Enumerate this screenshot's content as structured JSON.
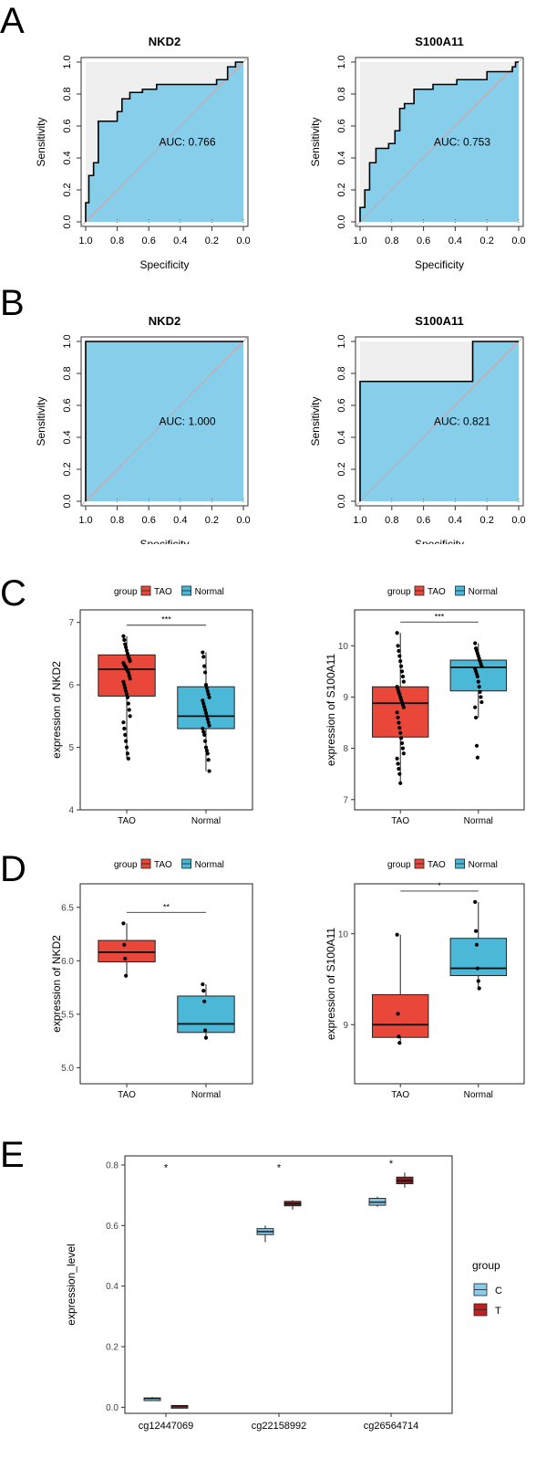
{
  "panels": {
    "A": {
      "label": "A"
    },
    "B": {
      "label": "B"
    },
    "C": {
      "label": "C"
    },
    "D": {
      "label": "D"
    },
    "E": {
      "label": "E"
    }
  },
  "colors": {
    "roc_fill": "#87ceeb",
    "roc_upper": "#efefef",
    "roc_diag": "#e59a9a",
    "TAO": "#e8473a",
    "Normal": "#4bb8d8",
    "C": "#89cdee",
    "T": "#c41f1f",
    "T_box": "#7b2020",
    "C_box": "#7fc2e2"
  },
  "chart_data": [
    {
      "id": "A1",
      "type": "line",
      "panel": "A",
      "title": "NKD2",
      "xlabel": "Specificity",
      "ylabel": "Sensitivity",
      "xlim": [
        1.0,
        0.0
      ],
      "ylim": [
        0,
        1
      ],
      "xticks": [
        "1.0",
        "0.8",
        "0.6",
        "0.4",
        "0.2",
        "0.0"
      ],
      "yticks": [
        "0.0",
        "0.2",
        "0.4",
        "0.6",
        "0.8",
        "1.0"
      ],
      "annotation": "AUC: 0.766",
      "roc": [
        [
          1.0,
          0.0
        ],
        [
          1.0,
          0.12
        ],
        [
          0.98,
          0.12
        ],
        [
          0.98,
          0.29
        ],
        [
          0.95,
          0.29
        ],
        [
          0.95,
          0.37
        ],
        [
          0.92,
          0.37
        ],
        [
          0.92,
          0.63
        ],
        [
          0.8,
          0.63
        ],
        [
          0.8,
          0.69
        ],
        [
          0.77,
          0.69
        ],
        [
          0.77,
          0.77
        ],
        [
          0.72,
          0.77
        ],
        [
          0.72,
          0.81
        ],
        [
          0.64,
          0.81
        ],
        [
          0.64,
          0.83
        ],
        [
          0.55,
          0.83
        ],
        [
          0.55,
          0.86
        ],
        [
          0.17,
          0.86
        ],
        [
          0.17,
          0.89
        ],
        [
          0.1,
          0.89
        ],
        [
          0.1,
          0.97
        ],
        [
          0.05,
          0.97
        ],
        [
          0.05,
          1.0
        ],
        [
          0.0,
          1.0
        ]
      ]
    },
    {
      "id": "A2",
      "type": "line",
      "panel": "A",
      "title": "S100A11",
      "xlabel": "Specificity",
      "ylabel": "Sensitivity",
      "xlim": [
        1.0,
        0.0
      ],
      "ylim": [
        0,
        1
      ],
      "xticks": [
        "1.0",
        "0.8",
        "0.6",
        "0.4",
        "0.2",
        "0.0"
      ],
      "yticks": [
        "0.0",
        "0.2",
        "0.4",
        "0.6",
        "0.8",
        "1.0"
      ],
      "annotation": "AUC: 0.753",
      "roc": [
        [
          1.0,
          0.0
        ],
        [
          1.0,
          0.09
        ],
        [
          0.97,
          0.09
        ],
        [
          0.97,
          0.2
        ],
        [
          0.94,
          0.2
        ],
        [
          0.94,
          0.37
        ],
        [
          0.9,
          0.37
        ],
        [
          0.9,
          0.46
        ],
        [
          0.82,
          0.46
        ],
        [
          0.82,
          0.49
        ],
        [
          0.78,
          0.49
        ],
        [
          0.78,
          0.57
        ],
        [
          0.75,
          0.57
        ],
        [
          0.75,
          0.71
        ],
        [
          0.72,
          0.71
        ],
        [
          0.72,
          0.74
        ],
        [
          0.66,
          0.74
        ],
        [
          0.66,
          0.83
        ],
        [
          0.54,
          0.83
        ],
        [
          0.54,
          0.86
        ],
        [
          0.39,
          0.86
        ],
        [
          0.39,
          0.89
        ],
        [
          0.2,
          0.89
        ],
        [
          0.2,
          0.94
        ],
        [
          0.04,
          0.94
        ],
        [
          0.04,
          0.97
        ],
        [
          0.02,
          0.97
        ],
        [
          0.02,
          1.0
        ],
        [
          0.0,
          1.0
        ]
      ]
    },
    {
      "id": "B1",
      "type": "line",
      "panel": "B",
      "title": "NKD2",
      "xlabel": "Specificity",
      "ylabel": "Sensitivity",
      "xlim": [
        1.0,
        0.0
      ],
      "ylim": [
        0,
        1
      ],
      "xticks": [
        "1.0",
        "0.8",
        "0.6",
        "0.4",
        "0.2",
        "0.0"
      ],
      "yticks": [
        "0.0",
        "0.2",
        "0.4",
        "0.6",
        "0.8",
        "1.0"
      ],
      "annotation": "AUC: 1.000",
      "roc": [
        [
          1.0,
          0.0
        ],
        [
          1.0,
          1.0
        ],
        [
          0.0,
          1.0
        ]
      ]
    },
    {
      "id": "B2",
      "type": "line",
      "panel": "B",
      "title": "S100A11",
      "xlabel": "Specificity",
      "ylabel": "Sensitivity",
      "xlim": [
        1.0,
        0.0
      ],
      "ylim": [
        0,
        1
      ],
      "xticks": [
        "1.0",
        "0.8",
        "0.6",
        "0.4",
        "0.2",
        "0.0"
      ],
      "yticks": [
        "0.0",
        "0.2",
        "0.4",
        "0.6",
        "0.8",
        "1.0"
      ],
      "annotation": "AUC: 0.821",
      "roc": [
        [
          1.0,
          0.0
        ],
        [
          1.0,
          0.75
        ],
        [
          0.29,
          0.75
        ],
        [
          0.29,
          1.0
        ],
        [
          0.0,
          1.0
        ]
      ]
    },
    {
      "id": "C1",
      "type": "box",
      "panel": "C",
      "legend_title": "group",
      "legend": [
        "TAO",
        "Normal"
      ],
      "ylabel": "expression of NKD2",
      "categories": [
        "TAO",
        "Normal"
      ],
      "ylim": [
        4,
        7.2
      ],
      "yticks": [
        4,
        5,
        6,
        7
      ],
      "significance": "***",
      "boxes": [
        {
          "group": "TAO",
          "min": 4.82,
          "q1": 5.82,
          "median": 6.25,
          "q3": 6.48,
          "max": 6.78
        },
        {
          "group": "Normal",
          "min": 4.62,
          "q1": 5.3,
          "median": 5.5,
          "q3": 5.97,
          "max": 6.52
        }
      ],
      "points": [
        [
          6.78,
          6.72,
          6.65,
          6.6,
          6.55,
          6.5,
          6.45,
          6.42,
          6.38,
          6.35,
          6.32,
          6.3,
          6.28,
          6.25,
          6.22,
          6.2,
          6.15,
          6.1,
          6.05,
          6.0,
          5.95,
          5.9,
          5.85,
          5.8,
          5.7,
          5.6,
          5.5,
          5.4,
          5.3,
          5.2,
          5.1,
          5.0,
          4.9,
          4.82
        ],
        [
          6.52,
          6.45,
          6.3,
          6.2,
          6.0,
          5.95,
          5.9,
          5.85,
          5.8,
          5.75,
          5.7,
          5.65,
          5.6,
          5.55,
          5.5,
          5.45,
          5.4,
          5.35,
          5.3,
          5.25,
          5.2,
          5.1,
          5.0,
          4.95,
          4.9,
          4.8,
          4.62
        ]
      ]
    },
    {
      "id": "C2",
      "type": "box",
      "panel": "C",
      "legend_title": "group",
      "legend": [
        "TAO",
        "Normal"
      ],
      "ylabel": "expression of S100A11",
      "categories": [
        "TAO",
        "Normal"
      ],
      "ylim": [
        6.8,
        10.7
      ],
      "yticks": [
        7,
        8,
        9,
        10
      ],
      "significance": "***",
      "boxes": [
        {
          "group": "TAO",
          "min": 7.32,
          "q1": 8.22,
          "median": 8.88,
          "q3": 9.2,
          "max": 10.25
        },
        {
          "group": "Normal",
          "min": 8.6,
          "q1": 9.12,
          "median": 9.58,
          "q3": 9.72,
          "max": 10.05
        }
      ],
      "points": [
        [
          10.25,
          10.0,
          9.9,
          9.8,
          9.7,
          9.6,
          9.5,
          9.4,
          9.3,
          9.2,
          9.15,
          9.1,
          9.05,
          9.0,
          8.95,
          8.9,
          8.85,
          8.8,
          8.7,
          8.6,
          8.5,
          8.4,
          8.3,
          8.2,
          8.1,
          8.0,
          7.9,
          7.8,
          7.7,
          7.6,
          7.5,
          7.32
        ],
        [
          10.05,
          9.95,
          9.9,
          9.85,
          9.8,
          9.75,
          9.7,
          9.65,
          9.6,
          9.55,
          9.5,
          9.45,
          9.4,
          9.3,
          9.2,
          9.1,
          9.0,
          8.9,
          8.8,
          8.6,
          8.05,
          7.82
        ]
      ]
    },
    {
      "id": "D1",
      "type": "box",
      "panel": "D",
      "legend_title": "group",
      "legend": [
        "TAO",
        "Normal"
      ],
      "ylabel": "expression of NKD2",
      "categories": [
        "TAO",
        "Normal"
      ],
      "ylim": [
        4.85,
        6.72
      ],
      "yticks": [
        5.0,
        5.5,
        6.0,
        6.5
      ],
      "ytick_labels": [
        "5.0",
        "5.5",
        "6.0",
        "6.5"
      ],
      "significance": "**",
      "boxes": [
        {
          "group": "TAO",
          "min": 5.86,
          "q1": 5.99,
          "median": 6.08,
          "q3": 6.19,
          "max": 6.35
        },
        {
          "group": "Normal",
          "min": 5.28,
          "q1": 5.33,
          "median": 5.41,
          "q3": 5.67,
          "max": 5.78
        }
      ],
      "points": [
        [
          6.35,
          6.15,
          6.02,
          5.86
        ],
        [
          5.78,
          5.72,
          5.62,
          5.35,
          5.28
        ]
      ]
    },
    {
      "id": "D2",
      "type": "box",
      "panel": "D",
      "legend_title": "group",
      "legend": [
        "TAO",
        "Normal"
      ],
      "ylabel": "expression of S100A11",
      "categories": [
        "TAO",
        "Normal"
      ],
      "ylim": [
        8.35,
        10.55
      ],
      "yticks": [
        9,
        10
      ],
      "significance": "*",
      "boxes": [
        {
          "group": "TAO",
          "min": 8.8,
          "q1": 8.86,
          "median": 9.0,
          "q3": 9.33,
          "max": 9.99
        },
        {
          "group": "Normal",
          "min": 9.38,
          "q1": 9.54,
          "median": 9.62,
          "q3": 9.95,
          "max": 10.35
        }
      ],
      "points": [
        [
          9.99,
          9.12,
          8.87,
          8.8
        ],
        [
          10.35,
          10.03,
          9.88,
          9.62,
          9.48,
          9.4
        ]
      ]
    },
    {
      "id": "E",
      "type": "box",
      "panel": "E",
      "ylabel": "expression_level",
      "categories": [
        "cg12447069",
        "cg22158992",
        "cg26564714"
      ],
      "ylim": [
        -0.02,
        0.83
      ],
      "yticks": [
        0.0,
        0.2,
        0.4,
        0.6,
        0.8
      ],
      "ytick_labels": [
        "0.0",
        "0.2",
        "0.4",
        "0.6",
        "0.8"
      ],
      "legend_title": "group",
      "legend": [
        "C",
        "T"
      ],
      "significance": [
        "*",
        "*",
        "*"
      ],
      "series": [
        {
          "name": "C",
          "boxes": [
            {
              "min": 0.025,
              "q1": 0.027,
              "median": 0.029,
              "q3": 0.031,
              "max": 0.034
            },
            {
              "min": 0.545,
              "q1": 0.57,
              "median": 0.58,
              "q3": 0.59,
              "max": 0.6
            },
            {
              "min": 0.662,
              "q1": 0.667,
              "median": 0.677,
              "q3": 0.69,
              "max": 0.695
            }
          ]
        },
        {
          "name": "T",
          "boxes": [
            {
              "min": 0.003,
              "q1": 0.004,
              "median": 0.005,
              "q3": 0.006,
              "max": 0.007
            },
            {
              "min": 0.652,
              "q1": 0.665,
              "median": 0.672,
              "q3": 0.68,
              "max": 0.684
            },
            {
              "min": 0.725,
              "q1": 0.738,
              "median": 0.748,
              "q3": 0.76,
              "max": 0.775
            }
          ]
        }
      ]
    }
  ]
}
